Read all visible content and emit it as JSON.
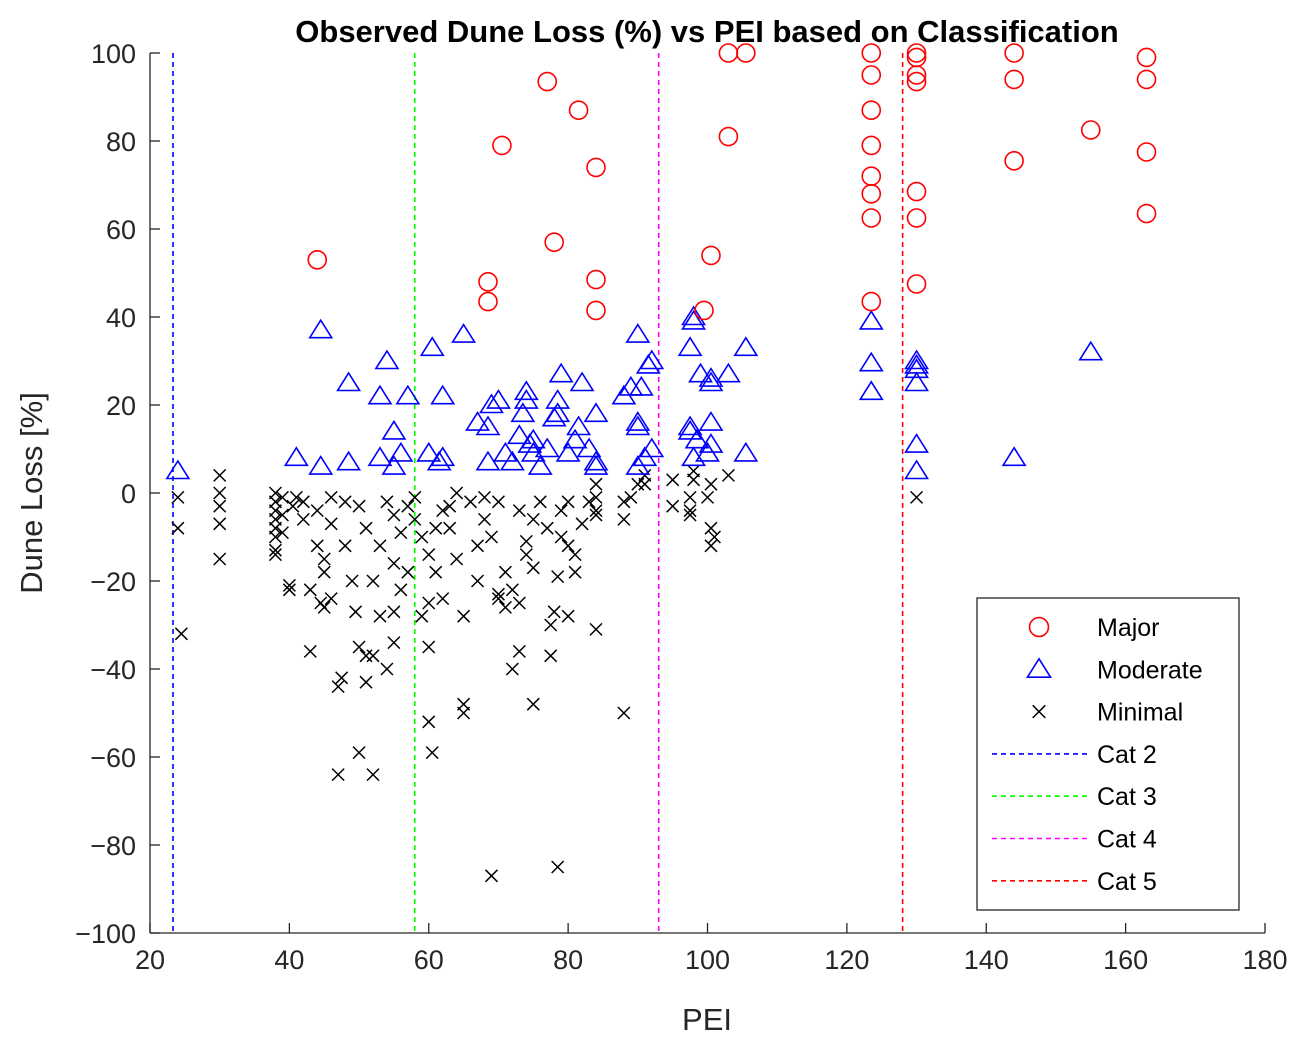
{
  "chart_data": {
    "type": "scatter",
    "title": "Observed Dune Loss (%) vs PEI based on Classification",
    "xlabel": "PEI",
    "ylabel": "Dune Loss [%]",
    "xlim": [
      20,
      180
    ],
    "ylim": [
      -100,
      100
    ],
    "xticks": [
      20,
      40,
      60,
      80,
      100,
      120,
      140,
      160,
      180
    ],
    "yticks": [
      -100,
      -80,
      -60,
      -40,
      -20,
      0,
      20,
      40,
      60,
      80,
      100
    ],
    "xtick_labels": [
      "20",
      "40",
      "60",
      "80",
      "100",
      "120",
      "140",
      "160",
      "180"
    ],
    "ytick_labels": [
      "−100",
      "−80",
      "−60",
      "−40",
      "−20",
      "0",
      "20",
      "40",
      "60",
      "80",
      "100"
    ],
    "grid": false,
    "legend_position": "bottom-right",
    "series": [
      {
        "name": "Major",
        "marker": "circle",
        "color": "#ff0000",
        "points": [
          [
            44,
            53
          ],
          [
            68.5,
            48
          ],
          [
            68.5,
            43.5
          ],
          [
            70.5,
            79
          ],
          [
            77,
            93.5
          ],
          [
            78,
            57
          ],
          [
            81.5,
            87
          ],
          [
            84,
            74
          ],
          [
            84,
            48.5
          ],
          [
            84,
            41.5
          ],
          [
            99.5,
            41.5
          ],
          [
            100.5,
            54
          ],
          [
            103,
            81
          ],
          [
            103,
            100
          ],
          [
            105.5,
            100
          ],
          [
            123.5,
            100
          ],
          [
            123.5,
            95
          ],
          [
            123.5,
            87
          ],
          [
            123.5,
            79
          ],
          [
            123.5,
            72
          ],
          [
            123.5,
            68
          ],
          [
            123.5,
            62.5
          ],
          [
            123.5,
            43.5
          ],
          [
            130,
            100
          ],
          [
            130,
            99
          ],
          [
            130,
            95
          ],
          [
            130,
            93.5
          ],
          [
            130,
            68.5
          ],
          [
            130,
            62.5
          ],
          [
            130,
            47.5
          ],
          [
            144,
            100
          ],
          [
            144,
            94
          ],
          [
            144,
            75.5
          ],
          [
            155,
            82.5
          ],
          [
            163,
            99
          ],
          [
            163,
            94
          ],
          [
            163,
            77.5
          ],
          [
            163,
            63.5
          ]
        ]
      },
      {
        "name": "Moderate",
        "marker": "triangle",
        "color": "#0000ff",
        "points": [
          [
            24,
            5
          ],
          [
            41,
            8
          ],
          [
            44.5,
            6
          ],
          [
            44.5,
            37
          ],
          [
            48.5,
            7
          ],
          [
            48.5,
            25
          ],
          [
            53,
            22
          ],
          [
            53,
            8
          ],
          [
            54,
            30
          ],
          [
            55,
            14
          ],
          [
            55,
            6
          ],
          [
            56,
            9
          ],
          [
            57,
            22
          ],
          [
            60,
            9
          ],
          [
            60.5,
            33
          ],
          [
            61.5,
            7
          ],
          [
            62,
            8
          ],
          [
            62,
            22
          ],
          [
            65,
            36
          ],
          [
            67,
            16
          ],
          [
            68.5,
            7
          ],
          [
            68.5,
            15
          ],
          [
            69,
            20
          ],
          [
            70,
            21
          ],
          [
            71,
            9
          ],
          [
            72,
            7
          ],
          [
            73,
            13
          ],
          [
            73.5,
            18
          ],
          [
            74,
            21
          ],
          [
            74,
            23
          ],
          [
            74.5,
            11
          ],
          [
            75,
            9
          ],
          [
            75,
            12
          ],
          [
            76,
            6
          ],
          [
            77,
            10
          ],
          [
            78,
            17
          ],
          [
            78.5,
            18
          ],
          [
            78.5,
            21
          ],
          [
            79,
            27
          ],
          [
            80,
            9
          ],
          [
            81,
            12
          ],
          [
            81.5,
            15
          ],
          [
            82,
            25
          ],
          [
            83,
            10
          ],
          [
            84,
            7
          ],
          [
            84,
            18
          ],
          [
            84,
            6
          ],
          [
            88,
            22
          ],
          [
            89,
            24
          ],
          [
            90,
            6
          ],
          [
            90,
            15
          ],
          [
            90,
            16
          ],
          [
            90.5,
            24
          ],
          [
            90,
            36
          ],
          [
            91,
            8
          ],
          [
            91.5,
            29
          ],
          [
            92,
            30
          ],
          [
            92,
            10
          ],
          [
            97.5,
            14
          ],
          [
            97.5,
            15
          ],
          [
            97.5,
            33
          ],
          [
            98,
            40
          ],
          [
            98,
            39
          ],
          [
            98,
            8
          ],
          [
            98.5,
            12
          ],
          [
            99,
            27
          ],
          [
            100,
            9
          ],
          [
            100.5,
            25
          ],
          [
            100.5,
            26
          ],
          [
            100.5,
            11
          ],
          [
            100.5,
            16
          ],
          [
            103,
            27
          ],
          [
            105.5,
            9
          ],
          [
            105.5,
            33
          ],
          [
            123.5,
            39
          ],
          [
            123.5,
            29.5
          ],
          [
            123.5,
            23
          ],
          [
            130,
            30
          ],
          [
            130,
            29
          ],
          [
            130,
            28
          ],
          [
            130,
            25
          ],
          [
            130,
            11
          ],
          [
            130,
            5
          ],
          [
            144,
            8
          ],
          [
            155,
            32
          ]
        ]
      },
      {
        "name": "Minimal",
        "marker": "x",
        "color": "#000000",
        "points": [
          [
            24,
            -1
          ],
          [
            24,
            -8
          ],
          [
            24.5,
            -32
          ],
          [
            30,
            4
          ],
          [
            30,
            0
          ],
          [
            30,
            -3
          ],
          [
            30,
            -7
          ],
          [
            30,
            -15
          ],
          [
            38,
            0
          ],
          [
            38,
            -2
          ],
          [
            38,
            -4
          ],
          [
            38,
            -6
          ],
          [
            38,
            -8
          ],
          [
            38,
            -10
          ],
          [
            38,
            -13
          ],
          [
            38,
            -14
          ],
          [
            39,
            -1
          ],
          [
            39,
            -5
          ],
          [
            39,
            -9
          ],
          [
            40,
            -21
          ],
          [
            40,
            -22
          ],
          [
            40.5,
            -3
          ],
          [
            41,
            -1
          ],
          [
            42,
            -2
          ],
          [
            42,
            -6
          ],
          [
            43,
            -36
          ],
          [
            43,
            -22
          ],
          [
            44,
            -4
          ],
          [
            44,
            -12
          ],
          [
            44.5,
            -25
          ],
          [
            45,
            -26
          ],
          [
            45,
            -15
          ],
          [
            45,
            -18
          ],
          [
            46,
            -24
          ],
          [
            46,
            -1
          ],
          [
            46,
            -7
          ],
          [
            47,
            -64
          ],
          [
            47,
            -44
          ],
          [
            47.5,
            -42
          ],
          [
            48,
            -12
          ],
          [
            48,
            -2
          ],
          [
            49,
            -20
          ],
          [
            49.5,
            -27
          ],
          [
            50,
            -59
          ],
          [
            50,
            -35
          ],
          [
            50,
            -3
          ],
          [
            51,
            -43
          ],
          [
            51,
            -37
          ],
          [
            51,
            -8
          ],
          [
            52,
            -64
          ],
          [
            52,
            -37
          ],
          [
            52,
            -20
          ],
          [
            53,
            -28
          ],
          [
            53,
            -12
          ],
          [
            54,
            -2
          ],
          [
            54,
            -40
          ],
          [
            55,
            -27
          ],
          [
            55,
            -34
          ],
          [
            55,
            -16
          ],
          [
            55,
            -5
          ],
          [
            56,
            -9
          ],
          [
            56,
            -22
          ],
          [
            57,
            -18
          ],
          [
            57,
            -3
          ],
          [
            58,
            -6
          ],
          [
            58,
            -1
          ],
          [
            59,
            -10
          ],
          [
            59,
            -28
          ],
          [
            60,
            -52
          ],
          [
            60,
            -35
          ],
          [
            60,
            -14
          ],
          [
            60,
            -25
          ],
          [
            60.5,
            -59
          ],
          [
            61,
            -8
          ],
          [
            61,
            -18
          ],
          [
            62,
            -24
          ],
          [
            62,
            -4
          ],
          [
            63,
            -3
          ],
          [
            63,
            -8
          ],
          [
            64,
            -15
          ],
          [
            64,
            0
          ],
          [
            65,
            -48
          ],
          [
            65,
            -50
          ],
          [
            65,
            -28
          ],
          [
            66,
            -2
          ],
          [
            67,
            -12
          ],
          [
            67,
            -20
          ],
          [
            68,
            -1
          ],
          [
            68,
            -6
          ],
          [
            69,
            -87
          ],
          [
            69,
            -10
          ],
          [
            70,
            -23
          ],
          [
            70,
            -24
          ],
          [
            70,
            -2
          ],
          [
            71,
            -18
          ],
          [
            71,
            -26
          ],
          [
            72,
            -40
          ],
          [
            72,
            -22
          ],
          [
            73,
            -36
          ],
          [
            73,
            -25
          ],
          [
            73,
            -4
          ],
          [
            74,
            -11
          ],
          [
            74,
            -14
          ],
          [
            75,
            -48
          ],
          [
            75,
            -17
          ],
          [
            75,
            -6
          ],
          [
            76,
            -2
          ],
          [
            77,
            -8
          ],
          [
            77.5,
            -37
          ],
          [
            77.5,
            -30
          ],
          [
            78,
            -27
          ],
          [
            78.5,
            -85
          ],
          [
            78.5,
            -19
          ],
          [
            79,
            -4
          ],
          [
            79,
            -10
          ],
          [
            80,
            -12
          ],
          [
            80,
            -2
          ],
          [
            80,
            -28
          ],
          [
            81,
            -18
          ],
          [
            81,
            -14
          ],
          [
            82,
            -7
          ],
          [
            83,
            -2
          ],
          [
            84,
            -31
          ],
          [
            84,
            -5
          ],
          [
            84,
            -4
          ],
          [
            84,
            -1
          ],
          [
            84,
            2
          ],
          [
            88,
            -50
          ],
          [
            88,
            -2
          ],
          [
            88,
            -6
          ],
          [
            89,
            -1
          ],
          [
            90,
            2
          ],
          [
            91,
            2
          ],
          [
            91,
            4
          ],
          [
            95,
            -3
          ],
          [
            95,
            3
          ],
          [
            97.5,
            -4
          ],
          [
            97.5,
            -5
          ],
          [
            97.5,
            -1
          ],
          [
            98,
            5
          ],
          [
            98,
            3
          ],
          [
            100,
            -1
          ],
          [
            100.5,
            -8
          ],
          [
            100.5,
            -12
          ],
          [
            100.5,
            2
          ],
          [
            101,
            -10
          ],
          [
            103,
            4
          ],
          [
            130,
            -1
          ]
        ]
      }
    ],
    "reference_lines": [
      {
        "name": "Cat 2",
        "x": 23.3,
        "color": "#0000ff"
      },
      {
        "name": "Cat 3",
        "x": 58.0,
        "color": "#00ff00"
      },
      {
        "name": "Cat 4",
        "x": 93.0,
        "color": "#ff00ff"
      },
      {
        "name": "Cat 5",
        "x": 128.0,
        "color": "#ff0000"
      }
    ],
    "legend": [
      "Major",
      "Moderate",
      "Minimal",
      "Cat 2",
      "Cat 3",
      "Cat 4",
      "Cat 5"
    ]
  }
}
